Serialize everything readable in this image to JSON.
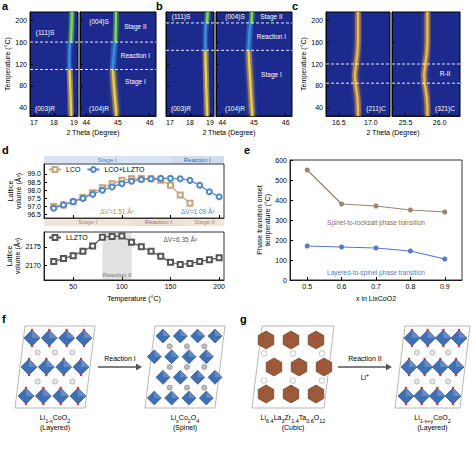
{
  "chart_data": [
    {
      "panel": "a",
      "type": "peakmap",
      "ylabel": "Temperature (°C)",
      "xlabel": "2 Theta (Degree)",
      "ylim": [
        25,
        215
      ],
      "yticks": [
        40,
        80,
        120,
        160,
        200
      ],
      "y": [
        25,
        40,
        60,
        80,
        100,
        110,
        120,
        140,
        160,
        180,
        200,
        215
      ],
      "subplots": [
        {
          "xlim": [
            16.8,
            19.2
          ],
          "xticks": [
            17,
            18,
            19
          ],
          "series": [
            {
              "color": "#f4d03f",
              "values": [
                18.86,
                18.85,
                18.83,
                18.81,
                18.79,
                18.77,
                null,
                null,
                null,
                null,
                null,
                null
              ]
            },
            {
              "color": "#3a8fe0",
              "values": [
                null,
                null,
                null,
                null,
                null,
                18.77,
                18.76,
                18.77,
                18.8,
                null,
                null,
                null
              ]
            },
            {
              "color": "#7ed957",
              "values": [
                null,
                null,
                null,
                null,
                null,
                null,
                null,
                null,
                18.84,
                18.87,
                18.89,
                18.9
              ]
            }
          ]
        },
        {
          "xlim": [
            43.8,
            46.2
          ],
          "xticks": [
            44,
            45,
            46
          ],
          "series": [
            {
              "color": "#f4d03f",
              "values": [
                44.95,
                44.93,
                44.9,
                44.87,
                44.85,
                44.83,
                null,
                null,
                null,
                null,
                null,
                null
              ]
            },
            {
              "color": "#3a8fe0",
              "values": [
                null,
                null,
                null,
                null,
                null,
                44.83,
                44.84,
                44.87,
                44.9,
                null,
                null,
                null
              ]
            },
            {
              "color": "#7ed957",
              "values": [
                null,
                null,
                null,
                null,
                null,
                null,
                null,
                null,
                44.92,
                44.93,
                44.94,
                44.94
              ]
            }
          ]
        }
      ],
      "phase_lines": [
        110,
        160
      ],
      "annotations": [
        {
          "text": "(003)R",
          "subplot": 0,
          "x": 17.55,
          "y": 38
        },
        {
          "text": "(111)S",
          "subplot": 0,
          "x": 17.55,
          "y": 178
        },
        {
          "text": "(104)R",
          "subplot": 1,
          "x": 44.4,
          "y": 38
        },
        {
          "text": "(004)S",
          "subplot": 1,
          "x": 44.4,
          "y": 198
        },
        {
          "text": "Stage I",
          "subplot": 1,
          "x": 45.55,
          "y": 88
        },
        {
          "text": "Reaction I",
          "subplot": 1,
          "x": 45.55,
          "y": 135
        },
        {
          "text": "Stage II",
          "subplot": 1,
          "x": 45.55,
          "y": 188
        }
      ]
    },
    {
      "panel": "b",
      "type": "peakmap",
      "xlabel": "2 Theta (Degree)",
      "tick_labels": "x",
      "ylim": [
        25,
        215
      ],
      "yticks": [
        40,
        80,
        120,
        160,
        200
      ],
      "y": [
        25,
        40,
        60,
        80,
        100,
        120,
        145,
        160,
        180,
        195,
        205,
        215
      ],
      "subplots": [
        {
          "xlim": [
            16.8,
            19.2
          ],
          "xticks": [
            17,
            18,
            19
          ],
          "series": [
            {
              "color": "#f4d03f",
              "values": [
                18.86,
                18.85,
                18.83,
                18.81,
                18.8,
                18.78,
                18.77,
                null,
                null,
                null,
                null,
                null
              ]
            },
            {
              "color": "#3a8fe0",
              "values": [
                null,
                null,
                null,
                null,
                null,
                null,
                18.77,
                18.76,
                18.77,
                18.8,
                null,
                null
              ]
            },
            {
              "color": "#7ed957",
              "values": [
                null,
                null,
                null,
                null,
                null,
                null,
                null,
                null,
                null,
                18.84,
                18.87,
                18.89
              ]
            }
          ]
        },
        {
          "xlim": [
            43.8,
            46.2
          ],
          "xticks": [
            44,
            45,
            46
          ],
          "series": [
            {
              "color": "#f4d03f",
              "values": [
                44.95,
                44.93,
                44.91,
                44.89,
                44.87,
                44.85,
                44.83,
                null,
                null,
                null,
                null,
                null
              ]
            },
            {
              "color": "#3a8fe0",
              "values": [
                null,
                null,
                null,
                null,
                null,
                null,
                44.83,
                44.84,
                44.86,
                44.89,
                null,
                null
              ]
            },
            {
              "color": "#7ed957",
              "values": [
                null,
                null,
                null,
                null,
                null,
                null,
                null,
                null,
                null,
                44.92,
                44.93,
                44.94
              ]
            }
          ]
        }
      ],
      "phase_lines": [
        145,
        195
      ],
      "annotations": [
        {
          "text": "(003)R",
          "subplot": 0,
          "x": 17.55,
          "y": 38
        },
        {
          "text": "(111)S",
          "subplot": 0,
          "x": 17.55,
          "y": 206
        },
        {
          "text": "(104)R",
          "subplot": 1,
          "x": 44.4,
          "y": 38
        },
        {
          "text": "(004)S",
          "subplot": 1,
          "x": 44.4,
          "y": 206
        },
        {
          "text": "Stage I",
          "subplot": 1,
          "x": 45.55,
          "y": 100
        },
        {
          "text": "Reaction I",
          "subplot": 1,
          "x": 45.55,
          "y": 170
        },
        {
          "text": "Stage II",
          "subplot": 1,
          "x": 45.55,
          "y": 206
        }
      ]
    },
    {
      "panel": "c",
      "type": "peakmap",
      "ylabel": "Temperature (°C)",
      "xlabel": "2 Theta (Degree)",
      "ylim": [
        25,
        215
      ],
      "yticks": [
        40,
        80,
        120,
        160,
        200
      ],
      "y": [
        25,
        40,
        60,
        85,
        100,
        120,
        140,
        160,
        180,
        200,
        215
      ],
      "subplots": [
        {
          "xlim": [
            16.3,
            17.3
          ],
          "xticks": [
            16.5,
            {
              "value": 17,
              "label": "17.0"
            }
          ],
          "series": [
            {
              "color": "#f5b942",
              "values": [
                16.8,
                16.8,
                16.79,
                16.76,
                16.75,
                16.77,
                16.79,
                16.8,
                16.8,
                16.8,
                16.8
              ]
            }
          ]
        },
        {
          "xlim": [
            25.3,
            26.3
          ],
          "xticks": [
            25.5,
            {
              "value": 26,
              "label": "26.0"
            }
          ],
          "series": [
            {
              "color": "#f5b942",
              "values": [
                25.82,
                25.82,
                25.81,
                25.78,
                25.77,
                25.79,
                25.81,
                25.82,
                25.82,
                25.82,
                25.82
              ]
            }
          ]
        }
      ],
      "phase_lines": [
        85,
        120
      ],
      "annotations": [
        {
          "text": "(211)C",
          "subplot": 0,
          "x": 17.08,
          "y": 38
        },
        {
          "text": "(321)C",
          "subplot": 1,
          "x": 26.08,
          "y": 38
        },
        {
          "text": "R-II",
          "subplot": 1,
          "x": 26.08,
          "y": 102
        }
      ]
    },
    {
      "panel": "d",
      "type": "line",
      "ylabel": "Lattice volume (Å³)",
      "tick_labels": "y",
      "legend": "top-left",
      "x": [
        30,
        40,
        50,
        60,
        70,
        80,
        90,
        100,
        110,
        120,
        130,
        140,
        150,
        160,
        170,
        180,
        190,
        200
      ],
      "xlim": [
        20,
        205
      ],
      "xticks": [
        50,
        100,
        150,
        200
      ],
      "ylim": [
        96.3,
        99.6
      ],
      "yticks": [
        96.5,
        {
          "value": 97,
          "label": "97.0"
        },
        97.5,
        {
          "value": 98,
          "label": "98.0"
        },
        98.5,
        {
          "value": 99,
          "label": "99.0"
        }
      ],
      "series": [
        {
          "name": "LCO",
          "color": "#c9a27e",
          "marker": "open_square",
          "values": [
            97.0,
            97.1,
            97.3,
            97.55,
            97.85,
            98.15,
            98.4,
            98.6,
            98.7,
            98.72,
            98.7,
            98.6,
            98.3,
            97.7,
            97.2,
            null,
            null,
            null
          ]
        },
        {
          "name": "LCO+LLZTO",
          "color": "#4f86c6",
          "marker": "open_circle",
          "values": [
            96.9,
            97.1,
            97.3,
            97.5,
            97.75,
            98.0,
            98.2,
            98.4,
            98.55,
            98.65,
            98.7,
            98.72,
            98.72,
            98.7,
            98.6,
            98.3,
            97.9,
            97.6
          ]
        }
      ],
      "bands": {
        "top": [
          {
            "text": "Stage I",
            "from": 20,
            "to": 150,
            "color": "#4f86c6"
          },
          {
            "text": "Reaction I",
            "from": 150,
            "to": 205,
            "color": "#2f66a8"
          }
        ],
        "bottom": [
          {
            "text": "Stage I",
            "from": 20,
            "to": 110,
            "color": "#b08863"
          },
          {
            "text": "Reaction I",
            "from": 110,
            "to": 165,
            "color": "#a07650"
          },
          {
            "text": "Stage II",
            "from": 165,
            "to": 205,
            "color": "#b08863"
          }
        ]
      },
      "annotations": [
        {
          "text": "ΔV=1.51 Å³",
          "x": 95,
          "y": 96.7,
          "color": "#b08863"
        },
        {
          "text": "ΔV=1.09 Å³",
          "x": 178,
          "y": 96.7,
          "color": "#4f86c6"
        }
      ]
    },
    {
      "type": "line",
      "ylabel": "Lattice volume (Å³)",
      "xlabel": "Temperature (°C)",
      "legend": "top-left",
      "x": [
        30,
        40,
        50,
        60,
        70,
        80,
        90,
        100,
        110,
        120,
        130,
        140,
        150,
        160,
        170,
        180,
        190,
        200
      ],
      "xlim": [
        20,
        205
      ],
      "xticks": [
        50,
        100,
        150,
        200
      ],
      "ylim": [
        2166,
        2179
      ],
      "yticks": [
        2170,
        2175
      ],
      "series": [
        {
          "name": "LLZTO",
          "color": "#555555",
          "marker": "open_square",
          "values": [
            2171.0,
            2171.8,
            2172.6,
            2173.8,
            2175.2,
            2177.6,
            2177.8,
            2177.9,
            2176.2,
            2175.0,
            2173.8,
            2172.4,
            2170.8,
            2170.2,
            2170.5,
            2171.0,
            2171.5,
            2172.0
          ]
        }
      ],
      "bands": {
        "inside": [
          {
            "text": "Reaction II",
            "from": 80,
            "to": 110,
            "color": "#777777"
          }
        ]
      },
      "annotations": [
        {
          "text": "ΔV=6.35 Å³",
          "x": 160,
          "y": 2177,
          "color": "#555555"
        }
      ]
    },
    {
      "panel": "e",
      "type": "line",
      "xlabel": "x in LixCoO2",
      "ylabel": "Phase transition onset temperature (°C)",
      "x": [
        0.5,
        0.6,
        0.7,
        0.8,
        0.9
      ],
      "xlim": [
        0.45,
        0.95
      ],
      "xticks": [
        0.5,
        0.6,
        0.7,
        0.8,
        0.9
      ],
      "ylim": [
        0,
        600
      ],
      "yticks": [
        0,
        100,
        200,
        300,
        400,
        500,
        600
      ],
      "series": [
        {
          "color": "#a0806a",
          "marker": "circle",
          "values": [
            550,
            380,
            370,
            350,
            340
          ]
        },
        {
          "color": "#5577cc",
          "marker": "circle",
          "values": [
            170,
            165,
            160,
            145,
            105
          ]
        }
      ],
      "annotations": [
        {
          "text": "Spinel-to-rocksalt phase transition",
          "x": 0.7,
          "y": 290,
          "color": "#8a6a55"
        },
        {
          "text": "Layered-to-spinel phase transition",
          "x": 0.7,
          "y": 40,
          "color": "#5577cc"
        }
      ]
    }
  ],
  "diagrams": [
    {
      "panel": "f",
      "left_label": "Li1-xCoO2 (Layered)",
      "arrow_label": "Reaction I",
      "right_label": "LixCo2O4 (Spinel)"
    },
    {
      "panel": "g",
      "left_label": "Li6.4La3Zr1.4Ta0.6O12 (Cubic)",
      "arrow_label": "Reaction II",
      "right_label": "Li1-x+yCoO2 (Layered)",
      "ion_label": "Li+"
    }
  ]
}
